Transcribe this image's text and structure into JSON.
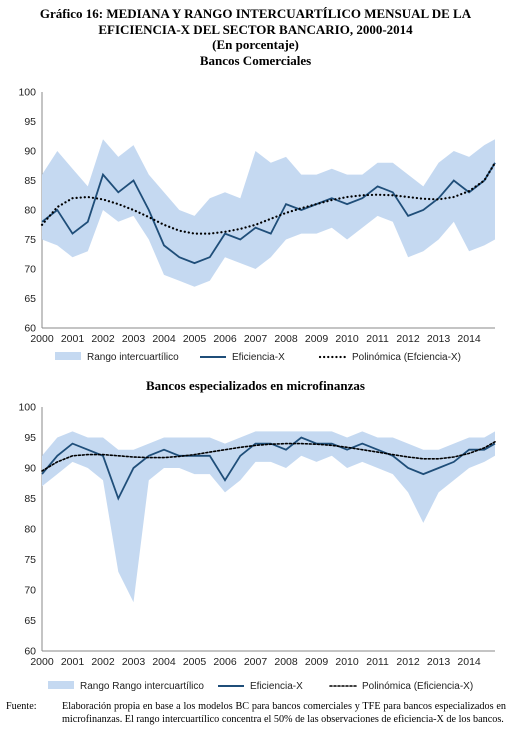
{
  "title": {
    "line1": "Gráfico 16: MEDIANA Y RANGO INTERCUARTÍLICO MENSUAL DE LA",
    "line2": "EFICIENCIA-X DEL SECTOR BANCARIO, 2000-2014",
    "line3": "(En porcentaje)"
  },
  "note": {
    "label": "Fuente:",
    "text": "Elaboración propia en base a los modelos BC para bancos comerciales y TFE para bancos especializados en microfinanzas. El rango intercuartílico concentra el 50% de las observaciones de eficiencia-X de los bancos."
  },
  "colors": {
    "band": "#c5d9f1",
    "line": "#1f4e79",
    "dots": "#000000"
  },
  "chart_data": [
    {
      "type": "line",
      "title": "Bancos Comerciales",
      "x_ticks": [
        "2000",
        "2001",
        "2002",
        "2003",
        "2004",
        "2005",
        "2006",
        "2007",
        "2008",
        "2009",
        "2010",
        "2011",
        "2012",
        "2013",
        "2014"
      ],
      "y_ticks": [
        60,
        65,
        70,
        75,
        80,
        85,
        90,
        95,
        100
      ],
      "ylim": [
        60,
        100
      ],
      "legend": [
        "Rango intercuartílico",
        "Eficiencia-X",
        "Polinómica (Efciencia-X)"
      ],
      "legend_position": "bottom",
      "series": [
        {
          "name": "Eficiencia-X",
          "x": [
            2000.0,
            2000.5,
            2001.0,
            2001.5,
            2002.0,
            2002.5,
            2003.0,
            2003.5,
            2004.0,
            2004.5,
            2005.0,
            2005.5,
            2006.0,
            2006.5,
            2007.0,
            2007.5,
            2008.0,
            2008.5,
            2009.0,
            2009.5,
            2010.0,
            2010.5,
            2011.0,
            2011.5,
            2012.0,
            2012.5,
            2013.0,
            2013.5,
            2014.0,
            2014.5,
            2014.85
          ],
          "values": [
            78,
            80,
            76,
            78,
            86,
            83,
            85,
            80,
            74,
            72,
            71,
            72,
            76,
            75,
            77,
            76,
            81,
            80,
            81,
            82,
            81,
            82,
            84,
            83,
            79,
            80,
            82,
            85,
            83,
            85,
            88
          ]
        },
        {
          "name": "Rango intercuartílico - límite superior",
          "x": [
            2000.0,
            2000.5,
            2001.0,
            2001.5,
            2002.0,
            2002.5,
            2003.0,
            2003.5,
            2004.0,
            2004.5,
            2005.0,
            2005.5,
            2006.0,
            2006.5,
            2007.0,
            2007.5,
            2008.0,
            2008.5,
            2009.0,
            2009.5,
            2010.0,
            2010.5,
            2011.0,
            2011.5,
            2012.0,
            2012.5,
            2013.0,
            2013.5,
            2014.0,
            2014.5,
            2014.85
          ],
          "values": [
            86,
            90,
            87,
            84,
            92,
            89,
            91,
            86,
            83,
            80,
            79,
            82,
            83,
            82,
            90,
            88,
            89,
            86,
            86,
            87,
            86,
            86,
            88,
            88,
            86,
            84,
            88,
            90,
            89,
            91,
            92
          ]
        },
        {
          "name": "Rango intercuartílico - límite inferior",
          "x": [
            2000.0,
            2000.5,
            2001.0,
            2001.5,
            2002.0,
            2002.5,
            2003.0,
            2003.5,
            2004.0,
            2004.5,
            2005.0,
            2005.5,
            2006.0,
            2006.5,
            2007.0,
            2007.5,
            2008.0,
            2008.5,
            2009.0,
            2009.5,
            2010.0,
            2010.5,
            2011.0,
            2011.5,
            2012.0,
            2012.5,
            2013.0,
            2013.5,
            2014.0,
            2014.5,
            2014.85
          ],
          "values": [
            75,
            74,
            72,
            73,
            80,
            78,
            79,
            75,
            69,
            68,
            67,
            68,
            72,
            71,
            70,
            72,
            75,
            76,
            76,
            77,
            75,
            77,
            79,
            78,
            72,
            73,
            75,
            78,
            73,
            74,
            75
          ]
        },
        {
          "name": "Polinómica (Efciencia-X)",
          "x": [
            2000.0,
            2000.5,
            2001.0,
            2001.5,
            2002.0,
            2002.5,
            2003.0,
            2003.5,
            2004.0,
            2004.5,
            2005.0,
            2005.5,
            2006.0,
            2006.5,
            2007.0,
            2007.5,
            2008.0,
            2008.5,
            2009.0,
            2009.5,
            2010.0,
            2010.5,
            2011.0,
            2011.5,
            2012.0,
            2012.5,
            2013.0,
            2013.5,
            2014.0,
            2014.5,
            2014.85
          ],
          "values": [
            77.5,
            80.5,
            82,
            82.2,
            81.8,
            81,
            80,
            78.8,
            77.5,
            76.5,
            76,
            76,
            76.3,
            76.8,
            77.5,
            78.5,
            79.5,
            80.3,
            81,
            81.7,
            82.2,
            82.5,
            82.6,
            82.5,
            82.2,
            81.9,
            81.8,
            82.2,
            83.2,
            85,
            88
          ]
        }
      ]
    },
    {
      "type": "line",
      "title": "Bancos especializados en microfinanzas",
      "x_ticks": [
        "2000",
        "2001",
        "2002",
        "2003",
        "2004",
        "2005",
        "2006",
        "2007",
        "2008",
        "2009",
        "2010",
        "2011",
        "2012",
        "2013",
        "2014"
      ],
      "y_ticks": [
        60,
        65,
        70,
        75,
        80,
        85,
        90,
        95,
        100
      ],
      "ylim": [
        60,
        100
      ],
      "legend": [
        "Rango Rango intercuartílico",
        "Eficiencia-X",
        "Polinómica (Eficiencia-X)"
      ],
      "legend_position": "bottom",
      "series": [
        {
          "name": "Eficiencia-X",
          "x": [
            2000.0,
            2000.5,
            2001.0,
            2001.5,
            2002.0,
            2002.5,
            2003.0,
            2003.5,
            2004.0,
            2004.5,
            2005.0,
            2005.5,
            2006.0,
            2006.5,
            2007.0,
            2007.5,
            2008.0,
            2008.5,
            2009.0,
            2009.5,
            2010.0,
            2010.5,
            2011.0,
            2011.5,
            2012.0,
            2012.5,
            2013.0,
            2013.5,
            2014.0,
            2014.5,
            2014.85
          ],
          "values": [
            89,
            92,
            94,
            93,
            92,
            85,
            90,
            92,
            93,
            92,
            92,
            92,
            88,
            92,
            94,
            94,
            93,
            95,
            94,
            94,
            93,
            94,
            93,
            92,
            90,
            89,
            90,
            91,
            93,
            93,
            94
          ]
        },
        {
          "name": "Rango intercuartílico - límite superior",
          "x": [
            2000.0,
            2000.5,
            2001.0,
            2001.5,
            2002.0,
            2002.5,
            2003.0,
            2003.5,
            2004.0,
            2004.5,
            2005.0,
            2005.5,
            2006.0,
            2006.5,
            2007.0,
            2007.5,
            2008.0,
            2008.5,
            2009.0,
            2009.5,
            2010.0,
            2010.5,
            2011.0,
            2011.5,
            2012.0,
            2012.5,
            2013.0,
            2013.5,
            2014.0,
            2014.5,
            2014.85
          ],
          "values": [
            92,
            95,
            96,
            95,
            95,
            93,
            93,
            94,
            95,
            95,
            95,
            95,
            94,
            95,
            96,
            96,
            96,
            96,
            96,
            96,
            95,
            96,
            95,
            95,
            94,
            93,
            93,
            94,
            95,
            95,
            96
          ]
        },
        {
          "name": "Rango intercuartílico - límite inferior",
          "x": [
            2000.0,
            2000.5,
            2001.0,
            2001.5,
            2002.0,
            2002.5,
            2003.0,
            2003.5,
            2004.0,
            2004.5,
            2005.0,
            2005.5,
            2006.0,
            2006.5,
            2007.0,
            2007.5,
            2008.0,
            2008.5,
            2009.0,
            2009.5,
            2010.0,
            2010.5,
            2011.0,
            2011.5,
            2012.0,
            2012.5,
            2013.0,
            2013.5,
            2014.0,
            2014.5,
            2014.85
          ],
          "values": [
            87,
            89,
            91,
            90,
            88,
            73,
            68,
            88,
            90,
            90,
            89,
            89,
            86,
            88,
            91,
            91,
            90,
            92,
            91,
            92,
            90,
            91,
            90,
            89,
            86,
            81,
            86,
            88,
            90,
            91,
            92
          ]
        },
        {
          "name": "Polinómica (Eficiencia-X)",
          "x": [
            2000.0,
            2000.5,
            2001.0,
            2001.5,
            2002.0,
            2002.5,
            2003.0,
            2003.5,
            2004.0,
            2004.5,
            2005.0,
            2005.5,
            2006.0,
            2006.5,
            2007.0,
            2007.5,
            2008.0,
            2008.5,
            2009.0,
            2009.5,
            2010.0,
            2010.5,
            2011.0,
            2011.5,
            2012.0,
            2012.5,
            2013.0,
            2013.5,
            2014.0,
            2014.5,
            2014.85
          ],
          "values": [
            89.5,
            91,
            92,
            92.2,
            92.2,
            92,
            91.8,
            91.7,
            91.7,
            91.9,
            92.2,
            92.6,
            93,
            93.4,
            93.7,
            93.9,
            94,
            94,
            93.9,
            93.7,
            93.4,
            93,
            92.6,
            92.2,
            91.8,
            91.5,
            91.5,
            91.8,
            92.4,
            93.3,
            94.3
          ]
        }
      ]
    }
  ]
}
